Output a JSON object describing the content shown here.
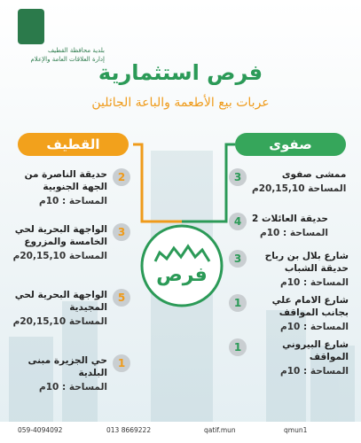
{
  "header": {
    "org_line1": "بلدية محافظة القطيف",
    "org_line2": "إدارة العلاقات العامة والإعلام",
    "title": "فرص استثمارية",
    "subtitle": "عربات بيع الأطعمة والباعة الجائلين"
  },
  "left": {
    "heading": "القطيف",
    "items": [
      {
        "count": "2",
        "name": "حديقة الناصرة من الجهة الجنوبية",
        "area": "المساحة : 10م"
      },
      {
        "count": "3",
        "name": "الواجهة البحرية لحي الخامسة والمزروع",
        "area": "المساحة 20,15,10م"
      },
      {
        "count": "5",
        "name": "الواجهة البحرية لحي المجيدية",
        "area": "المساحة 20,15,10م"
      },
      {
        "count": "1",
        "name": "حي الجزيرة مبنى البلدية",
        "area": "المساحة : 10م"
      }
    ]
  },
  "right": {
    "heading": "صفوى",
    "items": [
      {
        "count": "3",
        "name": "ممشى صفوى",
        "area": "المساحة 20,15,10م"
      },
      {
        "count": "4",
        "name": "حديقة العائلات 2",
        "area": "المساحة : 10م"
      },
      {
        "count": "3",
        "name": "شارع بلال بن رباح حديقة الشباب",
        "area": "المساحة : 10م"
      },
      {
        "count": "1",
        "name": "شارع الامام علي بجانب المواقف",
        "area": "المساحة : 10م"
      },
      {
        "count": "1",
        "name": "شارع البيروني المواقف",
        "area": "المساحة : 10م"
      }
    ]
  },
  "logo": {
    "text": "فرص"
  },
  "footer": {
    "phone1": "059-4094092",
    "phone2": "013 8669222",
    "web": "qatif.mun",
    "social": "qmun1"
  }
}
